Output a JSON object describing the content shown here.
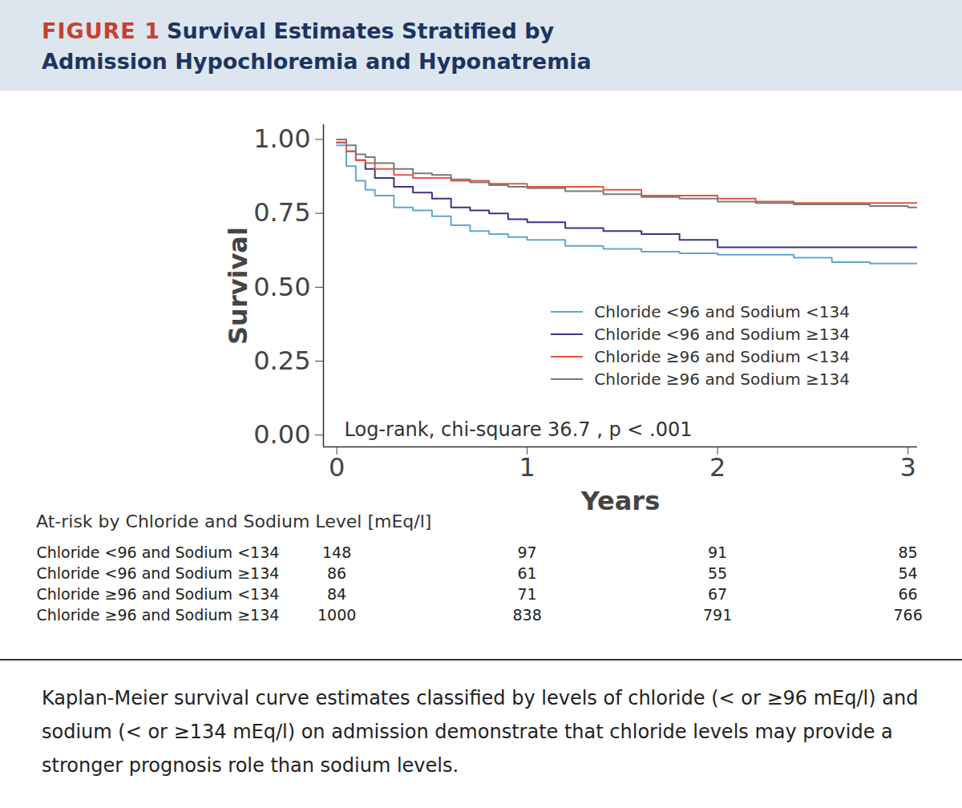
{
  "figure_label": "FIGURE 1",
  "caption": "Kaplan-Meier survival curve estimates classified by levels of chloride (< or ≥96 mEq/l) and sodium (< or ≥134 mEq/l) on admission demonstrate that chloride levels may provide a stronger prognosis role than sodium levels.",
  "chart_data": {
    "type": "line",
    "title": "Survival Estimates Stratified by Admission Hypochloremia and Hyponatremia",
    "x_label": "Years",
    "y_label": "Survival",
    "annotation": "Log-rank, chi-square 36.7 , p < .001",
    "line_style": "step",
    "x": [
      0,
      0.05,
      0.1,
      0.15,
      0.2,
      0.3,
      0.4,
      0.5,
      0.6,
      0.7,
      0.8,
      0.9,
      1.0,
      1.2,
      1.4,
      1.6,
      1.8,
      2.0,
      2.2,
      2.4,
      2.6,
      2.8,
      3.0,
      3.05
    ],
    "series": [
      {
        "name": "Chloride <96 and Sodium <134",
        "color": "#5fa8d3",
        "values": [
          0.98,
          0.91,
          0.86,
          0.83,
          0.81,
          0.77,
          0.76,
          0.74,
          0.71,
          0.69,
          0.68,
          0.67,
          0.66,
          0.64,
          0.63,
          0.62,
          0.615,
          0.61,
          0.61,
          0.6,
          0.585,
          0.58,
          0.58,
          0.58
        ]
      },
      {
        "name": "Chloride <96 and Sodium ≥134",
        "color": "#3b3486",
        "values": [
          0.99,
          0.96,
          0.93,
          0.9,
          0.87,
          0.84,
          0.82,
          0.8,
          0.77,
          0.76,
          0.75,
          0.73,
          0.72,
          0.7,
          0.69,
          0.68,
          0.66,
          0.635,
          0.635,
          0.635,
          0.635,
          0.635,
          0.635,
          0.635
        ]
      },
      {
        "name": "Chloride ≥96 and Sodium <134",
        "color": "#e3573f",
        "values": [
          0.99,
          0.96,
          0.93,
          0.92,
          0.9,
          0.88,
          0.87,
          0.87,
          0.86,
          0.86,
          0.85,
          0.85,
          0.84,
          0.84,
          0.83,
          0.81,
          0.81,
          0.8,
          0.79,
          0.785,
          0.785,
          0.785,
          0.785,
          0.785
        ]
      },
      {
        "name": "Chloride ≥96 and Sodium ≥134",
        "color": "#7a7a7a",
        "values": [
          1.0,
          0.98,
          0.95,
          0.94,
          0.92,
          0.9,
          0.885,
          0.88,
          0.865,
          0.855,
          0.845,
          0.84,
          0.835,
          0.825,
          0.815,
          0.805,
          0.8,
          0.79,
          0.785,
          0.78,
          0.78,
          0.775,
          0.77,
          0.77
        ]
      }
    ],
    "xlim": [
      -0.07,
      3.05
    ],
    "xticks": [
      0,
      1,
      2,
      3
    ],
    "ylim": [
      -0.04,
      1.05
    ],
    "yticks": [
      {
        "value": 0,
        "label": "0.00"
      },
      {
        "value": 0.25,
        "label": "0.25"
      },
      {
        "value": 0.5,
        "label": "0.50"
      },
      {
        "value": 0.75,
        "label": "0.75"
      },
      {
        "value": 1,
        "label": "1.00"
      }
    ],
    "grid": false,
    "legend": "right",
    "at_risk": {
      "title": "At-risk by Chloride and Sodium Level [mEq/l]",
      "x": [
        0,
        1,
        2,
        3
      ],
      "rows": [
        {
          "name": "Chloride <96 and Sodium <134",
          "values": [
            148,
            97,
            91,
            85
          ]
        },
        {
          "name": "Chloride <96 and Sodium ≥134",
          "values": [
            86,
            61,
            55,
            54
          ]
        },
        {
          "name": "Chloride ≥96 and Sodium <134",
          "values": [
            84,
            71,
            67,
            66
          ]
        },
        {
          "name": "Chloride ≥96 and Sodium ≥134",
          "values": [
            1000,
            838,
            791,
            766
          ]
        }
      ]
    }
  }
}
